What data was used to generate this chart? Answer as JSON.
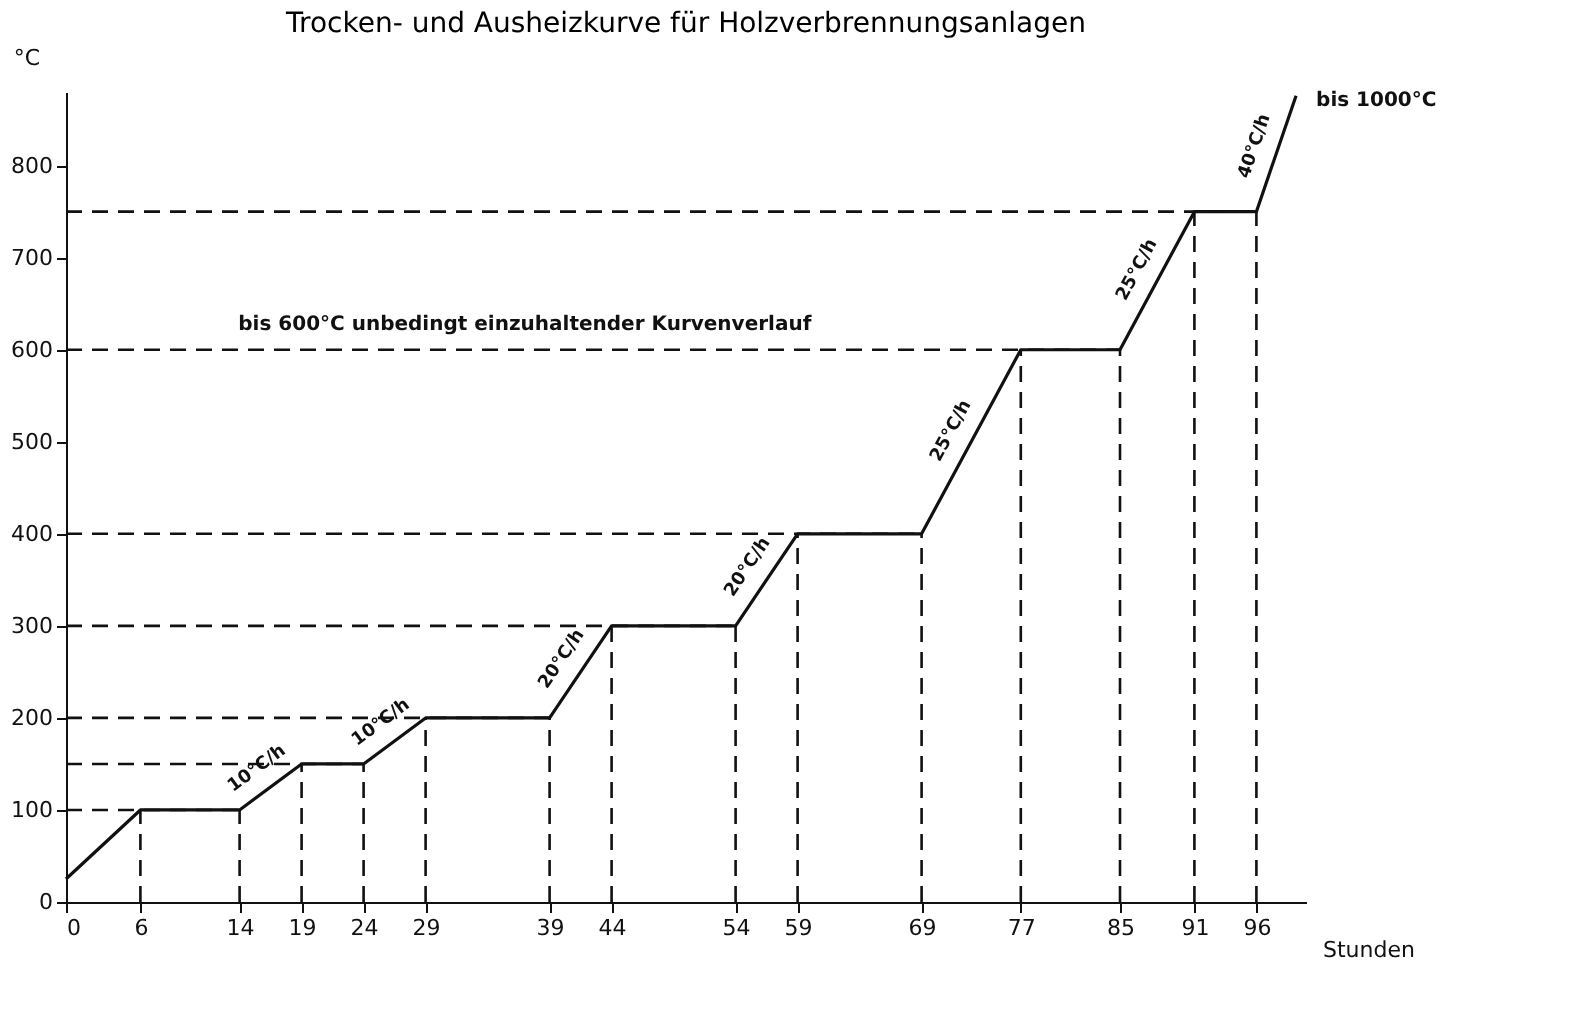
{
  "chart_data": {
    "type": "line",
    "title": "Trocken- und Ausheizkurve für Holzverbrennungsanlagen",
    "xlabel": "Stunden",
    "ylabel": "°C",
    "x": [
      0,
      6,
      14,
      19,
      24,
      29,
      39,
      44,
      54,
      59,
      69,
      77,
      85,
      91,
      96,
      99.2
    ],
    "series": [
      {
        "color": "#111111",
        "values": [
          25,
          100,
          100,
          150,
          150,
          200,
          200,
          300,
          300,
          400,
          400,
          600,
          600,
          750,
          750,
          876
        ]
      }
    ],
    "xlim": [
      0,
      100
    ],
    "ylim": [
      0,
      880
    ],
    "xticks": [
      0,
      6,
      14,
      19,
      24,
      29,
      39,
      44,
      54,
      59,
      69,
      77,
      85,
      91,
      96
    ],
    "yticks": [
      0,
      100,
      200,
      300,
      400,
      500,
      600,
      700,
      800
    ],
    "grid": false,
    "marker": "none",
    "line_style": "solid",
    "ref_lines": [
      {
        "axis": "y",
        "value": 100,
        "line_style": "dashed"
      },
      {
        "axis": "y",
        "value": 150,
        "line_style": "dashed"
      },
      {
        "axis": "y",
        "value": 200,
        "line_style": "dashed"
      },
      {
        "axis": "y",
        "value": 300,
        "line_style": "dashed"
      },
      {
        "axis": "y",
        "value": 400,
        "line_style": "dashed"
      },
      {
        "axis": "y",
        "value": 600,
        "line_style": "dashed"
      },
      {
        "axis": "y",
        "value": 750,
        "line_style": "dashed"
      },
      {
        "axis": "x",
        "value": 6,
        "line_style": "dashed"
      },
      {
        "axis": "x",
        "value": 14,
        "line_style": "dashed"
      },
      {
        "axis": "x",
        "value": 19,
        "line_style": "dashed"
      },
      {
        "axis": "x",
        "value": 24,
        "line_style": "dashed"
      },
      {
        "axis": "x",
        "value": 29,
        "line_style": "dashed"
      },
      {
        "axis": "x",
        "value": 39,
        "line_style": "dashed"
      },
      {
        "axis": "x",
        "value": 44,
        "line_style": "dashed"
      },
      {
        "axis": "x",
        "value": 54,
        "line_style": "dashed"
      },
      {
        "axis": "x",
        "value": 59,
        "line_style": "dashed"
      },
      {
        "axis": "x",
        "value": 69,
        "line_style": "dashed"
      },
      {
        "axis": "x",
        "value": 77,
        "line_style": "dashed"
      },
      {
        "axis": "x",
        "value": 85,
        "line_style": "dashed"
      },
      {
        "axis": "x",
        "value": 91,
        "line_style": "dashed"
      },
      {
        "axis": "x",
        "value": 96,
        "line_style": "dashed"
      }
    ],
    "annotations": [
      {
        "text": "10°C/h",
        "x": 16.5,
        "y": 125
      },
      {
        "text": "10°C/h",
        "x": 26.5,
        "y": 175
      },
      {
        "text": "20°C/h",
        "x": 41.5,
        "y": 250
      },
      {
        "text": "20°C/h",
        "x": 56.5,
        "y": 350
      },
      {
        "text": "25°C/h",
        "x": 73,
        "y": 500
      },
      {
        "text": "25°C/h",
        "x": 88,
        "y": 675
      },
      {
        "text": "40°C/h",
        "x": 97.6,
        "y": 813
      },
      {
        "text": "bis 1000°C",
        "x": 99.2,
        "y": 876
      },
      {
        "text": "bis 600°C unbedingt einzuhaltender Kurvenverlauf",
        "x": 37,
        "y": 600
      }
    ]
  }
}
